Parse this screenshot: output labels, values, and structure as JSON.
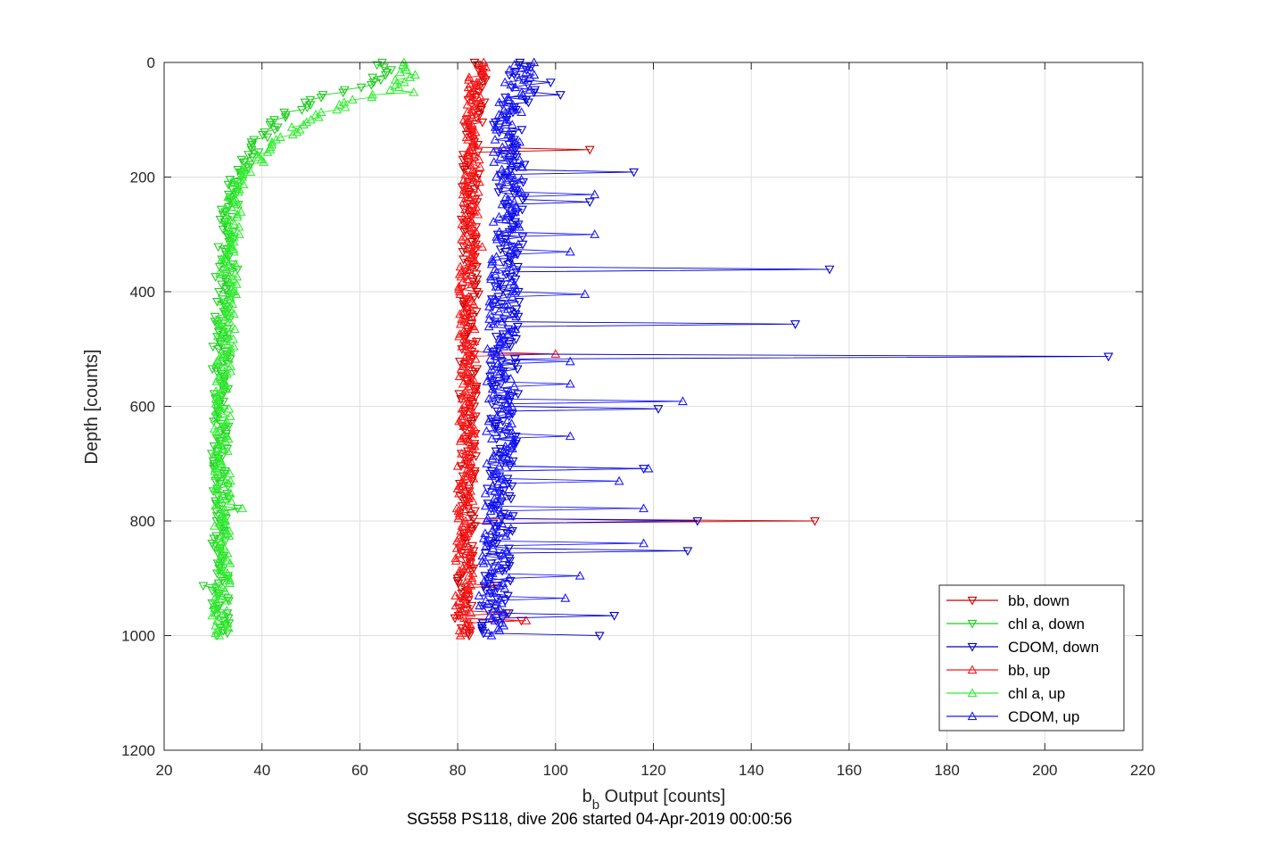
{
  "chart_data": {
    "type": "scatter",
    "xlabel_main": "b",
    "xlabel_sub": "b",
    "xlabel_rest": " Output [counts]",
    "ylabel": "Depth [counts]",
    "subtitle": "SG558 PS118, dive 206 started 04-Apr-2019 00:00:56",
    "xlim": [
      20,
      220
    ],
    "ylim": [
      0,
      1200
    ],
    "y_reversed": true,
    "xticks": [
      20,
      40,
      60,
      80,
      100,
      120,
      140,
      160,
      180,
      200,
      220
    ],
    "yticks": [
      0,
      200,
      400,
      600,
      800,
      1000,
      1200
    ],
    "grid": true,
    "legend_position": "bottom-right",
    "series": [
      {
        "name": "bb, down",
        "color": "#cc0000",
        "marker": "triangle-down",
        "profile": [
          [
            0,
            84.5
          ],
          [
            100,
            83.5
          ],
          [
            200,
            82.5
          ],
          [
            400,
            82.5
          ],
          [
            600,
            82
          ],
          [
            800,
            82
          ],
          [
            1000,
            81
          ]
        ],
        "spread": 1.8,
        "spikes": [
          [
            150,
            107
          ],
          [
            800,
            153
          ],
          [
            915,
            88
          ],
          [
            960,
            90
          ],
          [
            975,
            93
          ]
        ]
      },
      {
        "name": "chl a, down",
        "color": "#22cc22",
        "marker": "triangle-down",
        "profile": [
          [
            0,
            64
          ],
          [
            20,
            65
          ],
          [
            40,
            61
          ],
          [
            60,
            52
          ],
          [
            100,
            43
          ],
          [
            150,
            38
          ],
          [
            200,
            35
          ],
          [
            250,
            33.5
          ],
          [
            400,
            32
          ],
          [
            600,
            31.5
          ],
          [
            800,
            31.5
          ],
          [
            1000,
            31.5
          ]
        ],
        "spread": 1.8,
        "spikes": [
          [
            780,
            35
          ],
          [
            915,
            28
          ],
          [
            360,
            35
          ]
        ]
      },
      {
        "name": "CDOM, down",
        "color": "#0000cc",
        "marker": "triangle-down",
        "profile": [
          [
            0,
            92
          ],
          [
            50,
            93
          ],
          [
            100,
            90
          ],
          [
            200,
            91.5
          ],
          [
            400,
            90
          ],
          [
            600,
            89.5
          ],
          [
            800,
            88.5
          ],
          [
            1000,
            87.5
          ]
        ],
        "spread": 3.0,
        "spikes": [
          [
            190,
            116
          ],
          [
            360,
            156
          ],
          [
            455,
            149
          ],
          [
            515,
            213
          ],
          [
            605,
            121
          ],
          [
            800,
            129
          ],
          [
            850,
            127
          ],
          [
            245,
            107
          ],
          [
            965,
            112
          ],
          [
            1000,
            109
          ],
          [
            35,
            99
          ],
          [
            55,
            101
          ],
          [
            710,
            118
          ]
        ]
      },
      {
        "name": "bb, up",
        "color": "#ff1a1a",
        "marker": "triangle-up",
        "profile": [
          [
            0,
            84.5
          ],
          [
            100,
            83
          ],
          [
            200,
            83
          ],
          [
            400,
            82
          ],
          [
            600,
            82
          ],
          [
            800,
            81.5
          ],
          [
            1000,
            81
          ]
        ],
        "spread": 1.8,
        "spikes": [
          [
            510,
            100
          ],
          [
            975,
            94
          ],
          [
            320,
            85
          ]
        ]
      },
      {
        "name": "chl a, up",
        "color": "#33ee33",
        "marker": "triangle-up",
        "profile": [
          [
            0,
            68
          ],
          [
            20,
            70
          ],
          [
            40,
            68
          ],
          [
            70,
            58
          ],
          [
            100,
            49
          ],
          [
            150,
            42
          ],
          [
            200,
            35.5
          ],
          [
            250,
            34
          ],
          [
            400,
            33
          ],
          [
            600,
            32
          ],
          [
            800,
            32
          ],
          [
            1000,
            31.5
          ]
        ],
        "spread": 1.8,
        "spikes": [
          [
            780,
            36
          ],
          [
            50,
            71
          ]
        ]
      },
      {
        "name": "CDOM, up",
        "color": "#1a1aff",
        "marker": "triangle-up",
        "profile": [
          [
            0,
            94
          ],
          [
            50,
            92
          ],
          [
            100,
            90
          ],
          [
            200,
            90.5
          ],
          [
            400,
            89.5
          ],
          [
            600,
            88.5
          ],
          [
            800,
            88
          ],
          [
            1000,
            87
          ]
        ],
        "spread": 3.0,
        "spikes": [
          [
            230,
            101
          ],
          [
            230,
            108
          ],
          [
            300,
            108
          ],
          [
            330,
            103
          ],
          [
            405,
            106
          ],
          [
            520,
            103
          ],
          [
            560,
            103
          ],
          [
            590,
            126
          ],
          [
            650,
            103
          ],
          [
            710,
            119
          ],
          [
            730,
            113
          ],
          [
            780,
            118
          ],
          [
            840,
            118
          ],
          [
            895,
            105
          ],
          [
            935,
            102
          ]
        ]
      }
    ]
  }
}
